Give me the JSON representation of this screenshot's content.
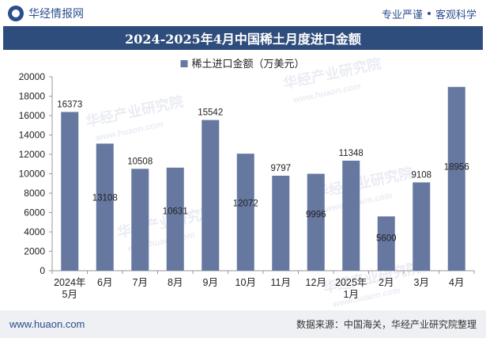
{
  "header": {
    "brand": "华经情报网",
    "slogan_left": "专业严谨",
    "slogan_right": "客观科学"
  },
  "chart_data": {
    "type": "bar",
    "title": "2024-2025年4月中国稀土月度进口金额",
    "legend": "稀土进口金额（万美元）",
    "categories": [
      [
        "2024年",
        "5月"
      ],
      [
        "6月"
      ],
      [
        "7月"
      ],
      [
        "8月"
      ],
      [
        "9月"
      ],
      [
        "10月"
      ],
      [
        "11月"
      ],
      [
        "12月"
      ],
      [
        "2025年",
        "1月"
      ],
      [
        "2月"
      ],
      [
        "3月"
      ],
      [
        "4月"
      ]
    ],
    "values": [
      16373,
      13108,
      10508,
      10631,
      15542,
      12072,
      9797,
      9996,
      11348,
      5600,
      9108,
      18956
    ],
    "label_position": [
      "top",
      "inside",
      "top",
      "inside",
      "top",
      "inside",
      "top",
      "inside",
      "top",
      "inside",
      "top",
      "inside"
    ],
    "ylim": [
      0,
      20000
    ],
    "yticks": [
      0,
      2000,
      4000,
      6000,
      8000,
      10000,
      12000,
      14000,
      16000,
      18000,
      20000
    ],
    "colors": {
      "bar": "#6678a0",
      "axis": "#999999",
      "text": "#222222"
    },
    "watermark": "华经产业研究院",
    "watermark_url": "www.huaon.com"
  },
  "footer": {
    "url": "www.huaon.com",
    "source": "数据来源：中国海关，华经产业研究院整理"
  }
}
